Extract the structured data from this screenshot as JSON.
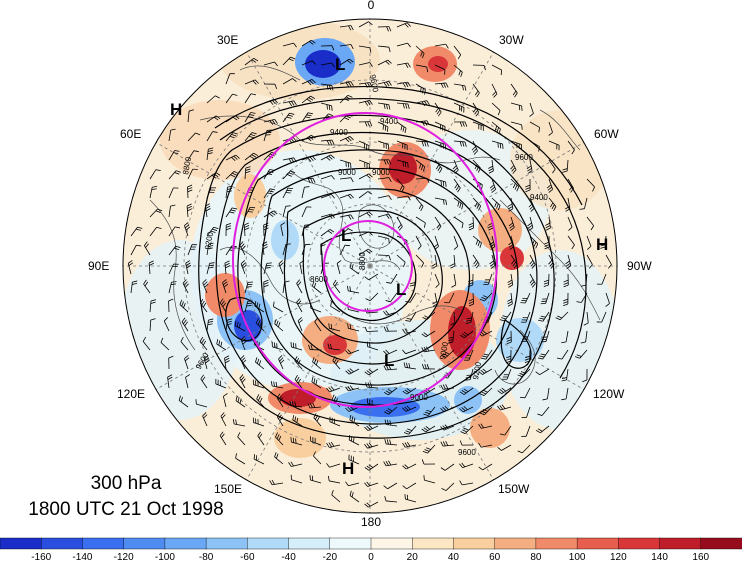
{
  "figure": {
    "level": "300 hPa",
    "valid_time": "1800 UTC 21 Oct 1998"
  },
  "longitude_labels": [
    "0",
    "30W",
    "60W",
    "90W",
    "120W",
    "150W",
    "180",
    "150E",
    "120E",
    "90E",
    "60E",
    "30E"
  ],
  "height_contour_labels": [
    "8400",
    "8600",
    "8800",
    "9000",
    "9200",
    "9400",
    "9600"
  ],
  "pressure_centers": [
    "H",
    "H",
    "H",
    "L",
    "L",
    "L",
    "L"
  ],
  "colorbar": {
    "ticks": [
      "-160",
      "-140",
      "-120",
      "-100",
      "-80",
      "-60",
      "-40",
      "-20",
      "0",
      "20",
      "40",
      "60",
      "80",
      "100",
      "120",
      "140",
      "160"
    ],
    "colors": [
      "#1a2dc8",
      "#2a4ee0",
      "#3a6ff0",
      "#4f8cf2",
      "#6aa7f4",
      "#8cc2f6",
      "#b0daf8",
      "#d4eefa",
      "#eef9fc",
      "#fdf6e6",
      "#fde6c4",
      "#f9cfa0",
      "#f5ae82",
      "#f08a68",
      "#e75e4e",
      "#d9363a",
      "#c01d2a",
      "#960c1c"
    ]
  },
  "colors": {
    "jet_circle": "#e020e0",
    "contour": "#000000",
    "map_lines": "#6b6b6b"
  }
}
